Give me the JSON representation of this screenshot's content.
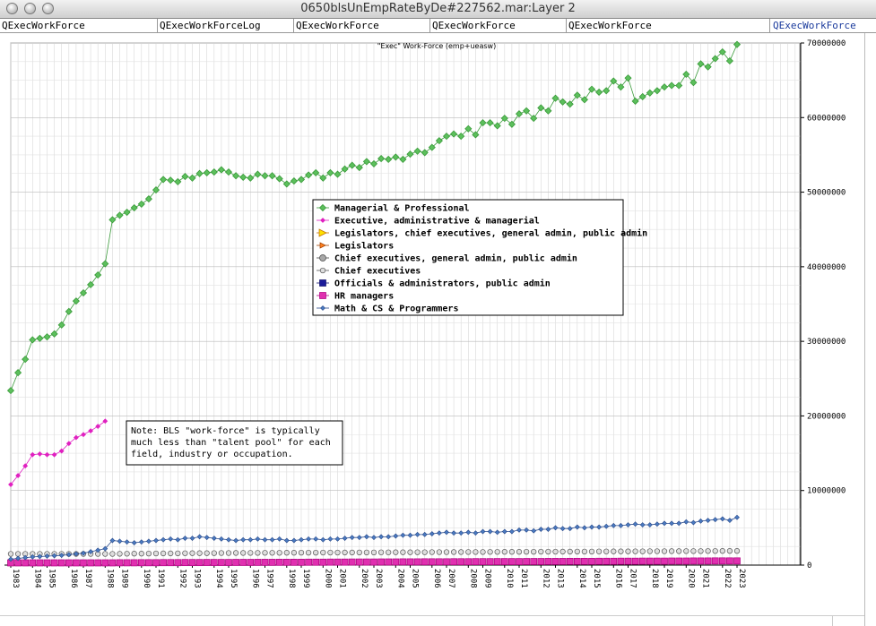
{
  "window": {
    "title": "0650blsUnEmpRateByDe#227562.mar:Layer 2"
  },
  "tabs": [
    {
      "label": "QExecWorkForce",
      "active": false
    },
    {
      "label": "QExecWorkForceLog",
      "active": false
    },
    {
      "label": "QExecWorkForce",
      "active": false
    },
    {
      "label": "QExecWorkForce",
      "active": false
    },
    {
      "label": "QExecWorkForce",
      "active": false
    },
    {
      "label": "QExecWorkForce",
      "active": true
    }
  ],
  "chart_data": {
    "type": "line",
    "title": "\"Exec\" Work-Force (emp+ueasw)",
    "xlabel": "",
    "ylabel": "",
    "ylim": [
      0,
      70000000
    ],
    "yticks": [
      "0",
      "10000000",
      "20000000",
      "30000000",
      "40000000",
      "50000000",
      "60000000",
      "70000000"
    ],
    "grid": true,
    "legend_position": "center",
    "x_count": 101,
    "x_labels": [
      "1983",
      "1984",
      "1985",
      "1986",
      "1987",
      "1988",
      "1989",
      "1990",
      "1991",
      "1992",
      "1993",
      "1994",
      "1995",
      "1996",
      "1997",
      "1998",
      "1999",
      "2000",
      "2001",
      "2002",
      "2003",
      "2004",
      "2005",
      "2006",
      "2007",
      "2008",
      "2009",
      "2010",
      "2011",
      "2012",
      "2013",
      "2014",
      "2015",
      "2016",
      "2017",
      "2018",
      "2019",
      "2020",
      "2021",
      "2022",
      "2023"
    ],
    "note": [
      "Note: BLS \"work-force\" is typically",
      "much less than \"talent pool\" for each",
      "field, industry or occupation."
    ],
    "series": [
      {
        "name": "Managerial & Professional",
        "color": "#3a9a3a",
        "fill": "#5cbf5c",
        "marker": "diamond",
        "values": [
          23400000,
          25800000,
          27600000,
          30200000,
          30400000,
          30600000,
          31000000,
          32200000,
          34000000,
          35400000,
          36500000,
          37600000,
          38900000,
          40400000,
          46300000,
          46900000,
          47300000,
          47900000,
          48400000,
          49100000,
          50300000,
          51700000,
          51600000,
          51400000,
          52100000,
          51900000,
          52500000,
          52600000,
          52700000,
          53000000,
          52700000,
          52200000,
          52000000,
          51900000,
          52400000,
          52200000,
          52200000,
          51800000,
          51100000,
          51500000,
          51700000,
          52300000,
          52600000,
          51900000,
          52600000,
          52400000,
          53100000,
          53600000,
          53300000,
          54100000,
          53800000,
          54500000,
          54400000,
          54700000,
          54400000,
          55100000,
          55500000,
          55300000,
          56000000,
          56900000,
          57500000,
          57800000,
          57500000,
          58500000,
          57700000,
          59300000,
          59300000,
          58900000,
          59900000,
          59100000,
          60500000,
          60900000,
          59900000,
          61300000,
          60900000,
          62600000,
          62100000,
          61800000,
          63000000,
          62400000,
          63800000,
          63400000,
          63600000,
          64900000,
          64100000,
          65300000,
          62200000,
          62800000,
          63300000,
          63600000,
          64100000,
          64300000,
          64300000,
          65800000,
          64700000,
          67200000,
          66800000,
          67900000,
          68800000,
          67600000,
          69800000
        ]
      },
      {
        "name": "Executive, administrative & managerial",
        "color": "#e020c0",
        "fill": "#e020c0",
        "marker": "diamond-small",
        "values": [
          10800000,
          12000000,
          13300000,
          14800000,
          14900000,
          14800000,
          14800000,
          15300000,
          16300000,
          17100000,
          17500000,
          18000000,
          18600000,
          19300000
        ]
      },
      {
        "name": "Legislators, chief executives, general admin, public admin",
        "color": "#c07000",
        "fill": "#ffe000",
        "marker": "triangle-right",
        "values": []
      },
      {
        "name": "Legislators",
        "color": "#a04000",
        "fill": "#ff8020",
        "marker": "triangle-right-small",
        "values": []
      },
      {
        "name": "Chief executives, general admin, public admin",
        "color": "#444444",
        "fill": "#a8a8a8",
        "marker": "circle",
        "values": []
      },
      {
        "name": "Chief executives",
        "color": "#555555",
        "fill": "#dddddd",
        "marker": "circle-small",
        "values": [
          1500000,
          1500000,
          1500000,
          1500000,
          1500000,
          1500000,
          1500000,
          1500000,
          1500000,
          1500000,
          1500000,
          1500000,
          1500000,
          1500000,
          1500000,
          1520000,
          1530000,
          1540000,
          1540000,
          1550000,
          1560000,
          1570000,
          1570000,
          1580000,
          1590000,
          1600000,
          1600000,
          1600000,
          1610000,
          1620000,
          1620000,
          1630000,
          1630000,
          1640000,
          1640000,
          1650000,
          1650000,
          1650000,
          1660000,
          1660000,
          1670000,
          1670000,
          1670000,
          1680000,
          1680000,
          1680000,
          1690000,
          1690000,
          1700000,
          1700000,
          1700000,
          1710000,
          1710000,
          1720000,
          1720000,
          1720000,
          1730000,
          1730000,
          1740000,
          1740000,
          1740000,
          1750000,
          1750000,
          1760000,
          1760000,
          1760000,
          1770000,
          1770000,
          1780000,
          1780000,
          1780000,
          1790000,
          1790000,
          1800000,
          1800000,
          1800000,
          1810000,
          1810000,
          1820000,
          1820000,
          1820000,
          1830000,
          1830000,
          1840000,
          1840000,
          1840000,
          1850000,
          1850000,
          1860000,
          1860000,
          1860000,
          1870000,
          1870000,
          1880000,
          1880000,
          1880000,
          1890000,
          1890000,
          1900000,
          1900000,
          1900000
        ]
      },
      {
        "name": "Officials & administrators, public admin",
        "color": "#10106a",
        "fill": "#1c1c9a",
        "marker": "square",
        "values": []
      },
      {
        "name": "HR managers",
        "color": "#b00080",
        "fill": "#e030b0",
        "marker": "square",
        "values": [
          300000,
          300000,
          300000,
          300000,
          300000,
          300000,
          300000,
          300000,
          300000,
          300000,
          300000,
          300000,
          300000,
          300000,
          300000,
          310000,
          310000,
          310000,
          320000,
          320000,
          320000,
          330000,
          330000,
          330000,
          340000,
          340000,
          340000,
          350000,
          350000,
          350000,
          350000,
          360000,
          360000,
          360000,
          370000,
          370000,
          370000,
          380000,
          380000,
          380000,
          380000,
          390000,
          390000,
          390000,
          400000,
          400000,
          400000,
          410000,
          410000,
          410000,
          410000,
          420000,
          420000,
          420000,
          430000,
          430000,
          430000,
          440000,
          440000,
          440000,
          440000,
          450000,
          450000,
          450000,
          460000,
          460000,
          460000,
          470000,
          470000,
          470000,
          470000,
          480000,
          480000,
          480000,
          490000,
          490000,
          490000,
          500000,
          500000,
          500000,
          500000,
          510000,
          510000,
          510000,
          520000,
          520000,
          520000,
          530000,
          530000,
          530000,
          530000,
          540000,
          540000,
          540000,
          550000,
          550000,
          550000,
          560000,
          560000,
          560000,
          560000
        ]
      },
      {
        "name": "Math & CS & Programmers",
        "color": "#2a4a8a",
        "fill": "#4a7ac0",
        "marker": "diamond-small",
        "values": [
          800000,
          900000,
          1000000,
          1100000,
          1150000,
          1200000,
          1250000,
          1300000,
          1400000,
          1500000,
          1600000,
          1800000,
          2000000,
          2200000,
          3300000,
          3200000,
          3100000,
          3000000,
          3100000,
          3200000,
          3300000,
          3400000,
          3500000,
          3400000,
          3600000,
          3600000,
          3800000,
          3700000,
          3600000,
          3500000,
          3400000,
          3300000,
          3400000,
          3400000,
          3500000,
          3400000,
          3400000,
          3500000,
          3300000,
          3300000,
          3400000,
          3500000,
          3500000,
          3400000,
          3500000,
          3500000,
          3600000,
          3700000,
          3700000,
          3800000,
          3700000,
          3800000,
          3800000,
          3900000,
          4000000,
          4000000,
          4100000,
          4100000,
          4200000,
          4300000,
          4400000,
          4300000,
          4300000,
          4400000,
          4300000,
          4500000,
          4500000,
          4400000,
          4500000,
          4500000,
          4700000,
          4700000,
          4600000,
          4800000,
          4800000,
          5000000,
          4900000,
          4900000,
          5100000,
          5000000,
          5100000,
          5100000,
          5200000,
          5300000,
          5300000,
          5400000,
          5500000,
          5400000,
          5400000,
          5500000,
          5600000,
          5600000,
          5600000,
          5800000,
          5700000,
          5900000,
          6000000,
          6100000,
          6200000,
          6000000,
          6400000
        ]
      }
    ]
  }
}
